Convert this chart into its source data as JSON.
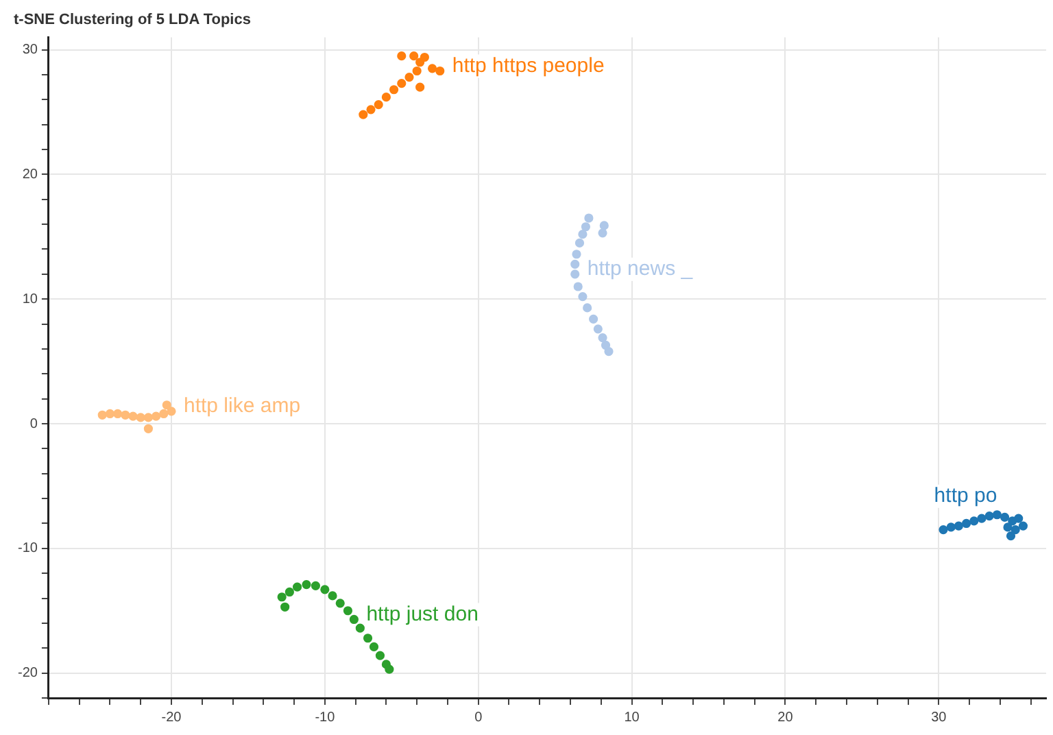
{
  "chart_data": {
    "type": "scatter",
    "title": "t-SNE Clustering of 5 LDA Topics",
    "xlim": [
      -28,
      37
    ],
    "ylim": [
      -22,
      31
    ],
    "xticks": [
      {
        "value": -28,
        "label": null
      },
      {
        "value": -26,
        "label": null
      },
      {
        "value": -24,
        "label": null
      },
      {
        "value": -22,
        "label": null
      },
      -20,
      {
        "value": -18,
        "label": null
      },
      {
        "value": -16,
        "label": null
      },
      {
        "value": -14,
        "label": null
      },
      {
        "value": -12,
        "label": null
      },
      -10,
      {
        "value": -8,
        "label": null
      },
      {
        "value": -6,
        "label": null
      },
      {
        "value": -4,
        "label": null
      },
      {
        "value": -2,
        "label": null
      },
      0,
      {
        "value": 2,
        "label": null
      },
      {
        "value": 4,
        "label": null
      },
      {
        "value": 6,
        "label": null
      },
      {
        "value": 8,
        "label": null
      },
      10,
      {
        "value": 12,
        "label": null
      },
      {
        "value": 14,
        "label": null
      },
      {
        "value": 16,
        "label": null
      },
      {
        "value": 18,
        "label": null
      },
      20,
      {
        "value": 22,
        "label": null
      },
      {
        "value": 24,
        "label": null
      },
      {
        "value": 26,
        "label": null
      },
      {
        "value": 28,
        "label": null
      },
      30,
      {
        "value": 32,
        "label": null
      },
      {
        "value": 34,
        "label": null
      },
      {
        "value": 36,
        "label": null
      }
    ],
    "yticks": [
      {
        "value": -22,
        "label": null
      },
      -20,
      {
        "value": -18,
        "label": null
      },
      {
        "value": -16,
        "label": null
      },
      {
        "value": -14,
        "label": null
      },
      {
        "value": -12,
        "label": null
      },
      -10,
      {
        "value": -8,
        "label": null
      },
      {
        "value": -6,
        "label": null
      },
      {
        "value": -4,
        "label": null
      },
      {
        "value": -2,
        "label": null
      },
      0,
      {
        "value": 2,
        "label": null
      },
      {
        "value": 4,
        "label": null
      },
      {
        "value": 6,
        "label": null
      },
      {
        "value": 8,
        "label": null
      },
      10,
      {
        "value": 12,
        "label": null
      },
      {
        "value": 14,
        "label": null
      },
      {
        "value": 16,
        "label": null
      },
      {
        "value": 18,
        "label": null
      },
      20,
      {
        "value": 22,
        "label": null
      },
      {
        "value": 24,
        "label": null
      },
      {
        "value": 26,
        "label": null
      },
      {
        "value": 28,
        "label": null
      },
      30
    ],
    "grid": true,
    "legend": false,
    "marker": "circle",
    "series": [
      {
        "color": "#ff7f0e",
        "x": [
          -7.5,
          -7,
          -6.5,
          -6,
          -5.5,
          -5,
          -4.5,
          -4,
          -3.8,
          -4.2,
          -5,
          -3.5,
          -3,
          -2.5,
          -3.8
        ],
        "values": [
          24.8,
          25.2,
          25.6,
          26.2,
          26.8,
          27.3,
          27.8,
          28.3,
          29,
          29.5,
          29.5,
          29.4,
          28.5,
          28.3,
          27
        ]
      },
      {
        "color": "#aec7e8",
        "x": [
          7.2,
          7,
          6.8,
          8.2,
          8.1,
          6.6,
          6.4,
          6.3,
          6.3,
          6.5,
          6.8,
          7.1,
          7.5,
          7.8,
          8.1,
          8.3,
          8.5
        ],
        "values": [
          16.5,
          15.8,
          15.2,
          15.9,
          15.3,
          14.5,
          13.6,
          12.8,
          12,
          11,
          10.2,
          9.3,
          8.4,
          7.6,
          6.9,
          6.3,
          5.8
        ]
      },
      {
        "color": "#ffbb78",
        "x": [
          -24.5,
          -24,
          -23.5,
          -23,
          -22.5,
          -22,
          -21.5,
          -21,
          -20.5,
          -20,
          -20.3,
          -21.5
        ],
        "values": [
          0.7,
          0.8,
          0.8,
          0.7,
          0.6,
          0.5,
          0.5,
          0.6,
          0.8,
          1,
          1.5,
          -0.4
        ]
      },
      {
        "color": "#1f77b4",
        "x": [
          30.3,
          30.8,
          31.3,
          31.8,
          32.3,
          32.8,
          33.3,
          33.8,
          34.3,
          34.8,
          35.2,
          34.5,
          35,
          34.7,
          35.5
        ],
        "values": [
          -8.5,
          -8.3,
          -8.2,
          -8,
          -7.8,
          -7.6,
          -7.4,
          -7.3,
          -7.5,
          -7.8,
          -7.6,
          -8.3,
          -8.5,
          -9,
          -8.2
        ]
      },
      {
        "color": "#2ca02c",
        "x": [
          -12.8,
          -12.3,
          -11.8,
          -11.2,
          -10.6,
          -10,
          -9.5,
          -9,
          -8.5,
          -8.1,
          -7.7,
          -7.2,
          -6.8,
          -6.4,
          -6,
          -5.8,
          -12.6
        ],
        "values": [
          -13.9,
          -13.5,
          -13.1,
          -12.9,
          -13,
          -13.3,
          -13.8,
          -14.4,
          -15,
          -15.7,
          -16.4,
          -17.2,
          -17.9,
          -18.6,
          -19.3,
          -19.7,
          -14.7
        ]
      }
    ],
    "annotations": [
      {
        "text": "http https people",
        "x": -2.5,
        "y": 28.3
      },
      {
        "text": "http news _",
        "x": 6.3,
        "y": 12
      },
      {
        "text": "http like amp",
        "x": -20,
        "y": 1
      },
      {
        "text": "http po",
        "x": 33.8,
        "y": -7.3
      },
      {
        "text": "http just don",
        "x": -8.1,
        "y": -15.7
      }
    ]
  }
}
